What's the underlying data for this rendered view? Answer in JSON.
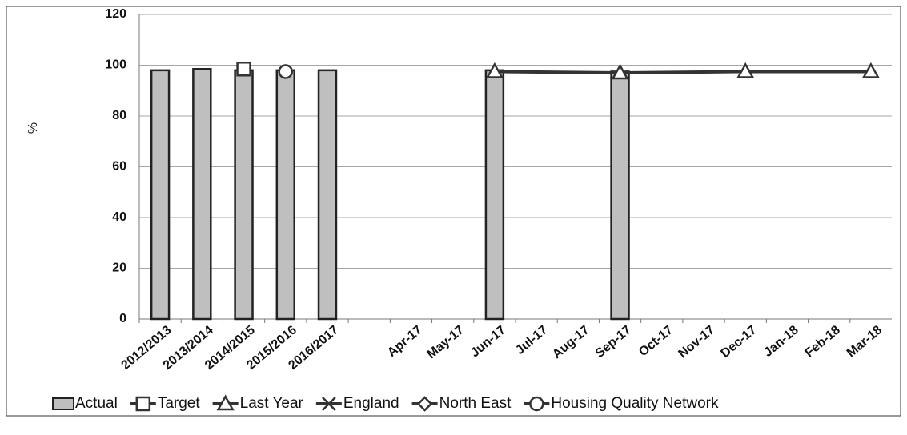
{
  "chart_data": {
    "type": "bar",
    "y_label": "%",
    "categories": [
      "2012/2013",
      "2013/2014",
      "2014/2015",
      "2015/2016",
      "2016/2017",
      null,
      "Apr-17",
      "May-17",
      "Jun-17",
      "Jul-17",
      "Aug-17",
      "Sep-17",
      "Oct-17",
      "Nov-17",
      "Dec-17",
      "Jan-18",
      "Feb-18",
      "Mar-18"
    ],
    "series": [
      {
        "name": "Actual",
        "type": "bar",
        "color": "#bfbfbf",
        "values": [
          98,
          98.5,
          98,
          98,
          98,
          null,
          null,
          null,
          98,
          null,
          null,
          97.5,
          null,
          null,
          null,
          null,
          null,
          null
        ]
      },
      {
        "name": "Target",
        "type": "line",
        "marker": "square",
        "color": "#333333",
        "values": [
          null,
          null,
          98.5,
          null,
          null,
          null,
          null,
          null,
          null,
          null,
          null,
          null,
          null,
          null,
          null,
          null,
          null,
          null
        ]
      },
      {
        "name": "Last Year",
        "type": "line",
        "marker": "triangle",
        "color": "#333333",
        "values": [
          null,
          null,
          null,
          null,
          null,
          null,
          null,
          null,
          97.5,
          null,
          null,
          97,
          null,
          null,
          97.5,
          null,
          null,
          97.5
        ]
      },
      {
        "name": "England",
        "type": "line",
        "marker": "x",
        "color": "#333333",
        "values": [
          null,
          null,
          null,
          null,
          null,
          null,
          null,
          null,
          null,
          null,
          null,
          null,
          null,
          null,
          null,
          null,
          null,
          null
        ]
      },
      {
        "name": "North East",
        "type": "line",
        "marker": "diamond",
        "color": "#333333",
        "values": [
          null,
          null,
          null,
          null,
          null,
          null,
          null,
          null,
          null,
          null,
          null,
          null,
          null,
          null,
          null,
          null,
          null,
          null
        ]
      },
      {
        "name": "Housing Quality Network",
        "type": "line",
        "marker": "circle",
        "color": "#333333",
        "values": [
          null,
          null,
          null,
          97.5,
          null,
          null,
          null,
          null,
          null,
          null,
          null,
          null,
          null,
          null,
          null,
          null,
          null,
          null
        ]
      }
    ],
    "ylim": [
      0,
      120
    ],
    "yticks": [
      0,
      20,
      40,
      60,
      80,
      100,
      120
    ],
    "grid": true,
    "legend": "bottom"
  }
}
